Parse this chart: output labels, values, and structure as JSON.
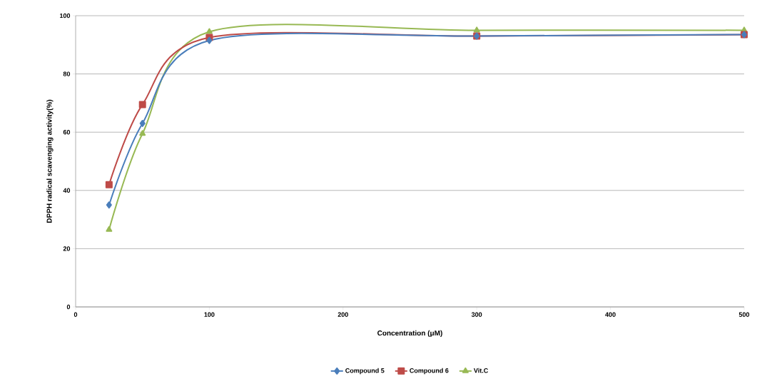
{
  "chart_data": {
    "type": "line",
    "xlabel": "Concentration (μM)",
    "ylabel": "DPPH radical scavenging activity(%)",
    "x": [
      25,
      50,
      100,
      300,
      500
    ],
    "series": [
      {
        "name": "Compound 5",
        "color": "#4a7ebb",
        "marker": "diamond",
        "values": [
          35,
          63,
          91.5,
          93,
          93.5
        ]
      },
      {
        "name": "Compound 6",
        "color": "#be4b48",
        "marker": "square",
        "values": [
          42,
          69.5,
          92.5,
          93,
          93.5
        ]
      },
      {
        "name": "Vit.C",
        "color": "#98b954",
        "marker": "triangle",
        "values": [
          26.5,
          59.5,
          94.5,
          95,
          95
        ]
      }
    ],
    "xlim": [
      0,
      500
    ],
    "xticks": [
      0,
      100,
      200,
      300,
      400,
      500
    ],
    "ylim": [
      0,
      100
    ],
    "yticks": [
      0,
      20,
      40,
      60,
      80,
      100
    ],
    "grid": "y",
    "legend": "bottom",
    "line_style": "solid"
  }
}
